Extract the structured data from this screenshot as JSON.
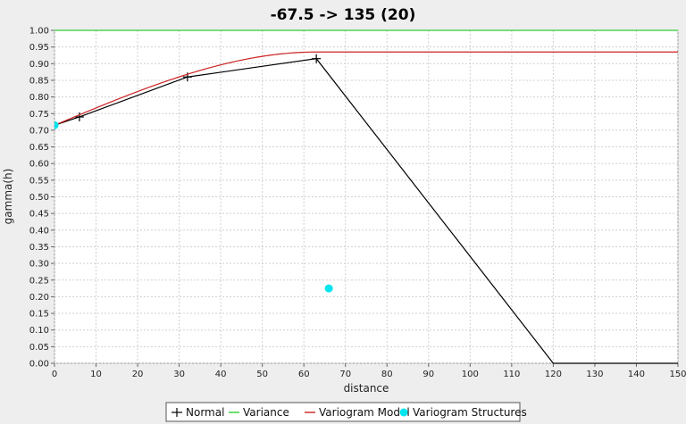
{
  "chart_data": {
    "type": "line",
    "title": "-67.5 -> 135 (20)",
    "xlabel": "distance",
    "ylabel": "gamma(h)",
    "xlim": [
      0,
      150
    ],
    "ylim": [
      0,
      1.0
    ],
    "x_ticks": [
      0,
      10,
      20,
      30,
      40,
      50,
      60,
      70,
      80,
      90,
      100,
      110,
      120,
      130,
      140,
      150
    ],
    "y_ticks": [
      0.0,
      0.05,
      0.1,
      0.15,
      0.2,
      0.25,
      0.3,
      0.35,
      0.4,
      0.45,
      0.5,
      0.55,
      0.6,
      0.65,
      0.7,
      0.75,
      0.8,
      0.85,
      0.9,
      0.95,
      1.0
    ],
    "x_tick_labels": [
      "0",
      "10",
      "20",
      "30",
      "40",
      "50",
      "60",
      "70",
      "80",
      "90",
      "100",
      "110",
      "120",
      "130",
      "140",
      "150"
    ],
    "y_tick_labels": [
      "0.00",
      "0.05",
      "0.10",
      "0.15",
      "0.20",
      "0.25",
      "0.30",
      "0.35",
      "0.40",
      "0.45",
      "0.50",
      "0.55",
      "0.60",
      "0.65",
      "0.70",
      "0.75",
      "0.80",
      "0.85",
      "0.90",
      "0.95",
      "1.00"
    ],
    "grid": true,
    "legend_position": "bottom",
    "series": [
      {
        "name": "Normal",
        "kind": "line-markers",
        "color": "#000000",
        "x": [
          0,
          6,
          32,
          63,
          120,
          150
        ],
        "y": [
          0.715,
          0.74,
          0.86,
          0.915,
          0.0,
          0.0
        ],
        "marked": [
          false,
          true,
          true,
          true,
          false,
          false
        ]
      },
      {
        "name": "Variance",
        "kind": "line",
        "color": "#33cc33",
        "x": [
          0,
          150
        ],
        "y": [
          1.0,
          1.0
        ]
      },
      {
        "name": "Variogram Model",
        "kind": "spherical-model",
        "color": "#cc2222",
        "nugget": 0.715,
        "sill": 0.935,
        "range": 63,
        "xmax": 150
      },
      {
        "name": "Variogram Structures",
        "kind": "scatter",
        "color": "#00e5ee",
        "x": [
          0,
          66
        ],
        "y": [
          0.715,
          0.225
        ]
      }
    ]
  }
}
